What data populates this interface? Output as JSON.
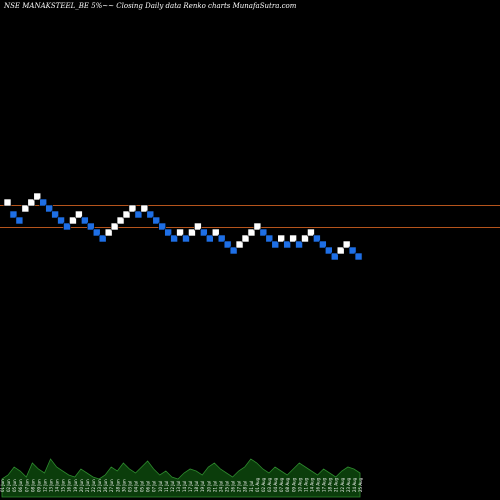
{
  "title": "NSE MANAKSTEEL_BE 5%~~ Closing Daily data Renko charts MunafaSutra.com",
  "colors": {
    "background": "#000000",
    "up_brick": "#ffffff",
    "down_brick": "#1e6fe6",
    "reference_line": "#b5541c",
    "volume_fill": "#0b3d0b",
    "volume_line": "#2e8b2e",
    "label_text": "#ffffff"
  },
  "chart_data": {
    "type": "renko",
    "title": "NSE MANAKSTEEL_BE 5%~~ Closing Daily data Renko charts MunafaSutra.com",
    "brick_size_percent": 5,
    "reference_lines": [
      5.22,
      5.0
    ],
    "bricks": [
      {
        "direction": "up",
        "level": 5.18
      },
      {
        "direction": "down",
        "level": 5.06
      },
      {
        "direction": "down",
        "level": 5.0
      },
      {
        "direction": "up",
        "level": 5.12
      },
      {
        "direction": "up",
        "level": 5.18
      },
      {
        "direction": "up",
        "level": 5.24
      },
      {
        "direction": "down",
        "level": 5.18
      },
      {
        "direction": "down",
        "level": 5.12
      },
      {
        "direction": "down",
        "level": 5.06
      },
      {
        "direction": "down",
        "level": 5.0
      },
      {
        "direction": "down",
        "level": 4.94
      },
      {
        "direction": "up",
        "level": 5.0
      },
      {
        "direction": "up",
        "level": 5.06
      },
      {
        "direction": "down",
        "level": 5.0
      },
      {
        "direction": "down",
        "level": 4.94
      },
      {
        "direction": "down",
        "level": 4.88
      },
      {
        "direction": "down",
        "level": 4.82
      },
      {
        "direction": "up",
        "level": 4.88
      },
      {
        "direction": "up",
        "level": 4.94
      },
      {
        "direction": "up",
        "level": 5.0
      },
      {
        "direction": "up",
        "level": 5.06
      },
      {
        "direction": "up",
        "level": 5.12
      },
      {
        "direction": "down",
        "level": 5.06
      },
      {
        "direction": "up",
        "level": 5.12
      },
      {
        "direction": "down",
        "level": 5.06
      },
      {
        "direction": "down",
        "level": 5.0
      },
      {
        "direction": "down",
        "level": 4.94
      },
      {
        "direction": "down",
        "level": 4.88
      },
      {
        "direction": "down",
        "level": 4.82
      },
      {
        "direction": "up",
        "level": 4.88
      },
      {
        "direction": "down",
        "level": 4.82
      },
      {
        "direction": "up",
        "level": 4.88
      },
      {
        "direction": "up",
        "level": 4.94
      },
      {
        "direction": "down",
        "level": 4.88
      },
      {
        "direction": "down",
        "level": 4.82
      },
      {
        "direction": "up",
        "level": 4.88
      },
      {
        "direction": "down",
        "level": 4.82
      },
      {
        "direction": "down",
        "level": 4.76
      },
      {
        "direction": "down",
        "level": 4.7
      },
      {
        "direction": "up",
        "level": 4.76
      },
      {
        "direction": "up",
        "level": 4.82
      },
      {
        "direction": "up",
        "level": 4.88
      },
      {
        "direction": "up",
        "level": 4.94
      },
      {
        "direction": "down",
        "level": 4.88
      },
      {
        "direction": "down",
        "level": 4.82
      },
      {
        "direction": "down",
        "level": 4.76
      },
      {
        "direction": "up",
        "level": 4.82
      },
      {
        "direction": "down",
        "level": 4.76
      },
      {
        "direction": "up",
        "level": 4.82
      },
      {
        "direction": "down",
        "level": 4.76
      },
      {
        "direction": "up",
        "level": 4.82
      },
      {
        "direction": "up",
        "level": 4.88
      },
      {
        "direction": "down",
        "level": 4.82
      },
      {
        "direction": "down",
        "level": 4.76
      },
      {
        "direction": "down",
        "level": 4.7
      },
      {
        "direction": "down",
        "level": 4.64
      },
      {
        "direction": "up",
        "level": 4.7
      },
      {
        "direction": "up",
        "level": 4.76
      },
      {
        "direction": "down",
        "level": 4.7
      },
      {
        "direction": "down",
        "level": 4.64
      }
    ],
    "volume": [
      18,
      22,
      30,
      26,
      20,
      34,
      28,
      24,
      38,
      30,
      26,
      22,
      20,
      28,
      24,
      20,
      18,
      22,
      30,
      26,
      34,
      28,
      24,
      30,
      36,
      28,
      22,
      26,
      20,
      18,
      24,
      28,
      26,
      22,
      30,
      34,
      28,
      24,
      20,
      26,
      30,
      38,
      34,
      28,
      24,
      30,
      26,
      22,
      28,
      34,
      30,
      26,
      22,
      28,
      24,
      20,
      26,
      30,
      28,
      24
    ],
    "date_labels": [
      "01 Jun",
      "02 Jun",
      "05 Jun",
      "06 Jun",
      "07 Jun",
      "08 Jun",
      "09 Jun",
      "12 Jun",
      "13 Jun",
      "14 Jun",
      "15 Jun",
      "16 Jun",
      "19 Jun",
      "20 Jun",
      "21 Jun",
      "22 Jun",
      "23 Jun",
      "26 Jun",
      "27 Jun",
      "28 Jun",
      "30 Jun",
      "03 Jul",
      "04 Jul",
      "05 Jul",
      "06 Jul",
      "07 Jul",
      "10 Jul",
      "11 Jul",
      "12 Jul",
      "13 Jul",
      "14 Jul",
      "17 Jul",
      "18 Jul",
      "19 Jul",
      "20 Jul",
      "21 Jul",
      "24 Jul",
      "25 Jul",
      "26 Jul",
      "27 Jul",
      "28 Jul",
      "31 Jul",
      "01 Aug",
      "02 Aug",
      "03 Aug",
      "04 Aug",
      "07 Aug",
      "08 Aug",
      "09 Aug",
      "10 Aug",
      "11 Aug",
      "14 Aug",
      "16 Aug",
      "17 Aug",
      "18 Aug",
      "21 Aug",
      "22 Aug",
      "23 Aug",
      "24 Aug",
      "25 Aug"
    ]
  }
}
